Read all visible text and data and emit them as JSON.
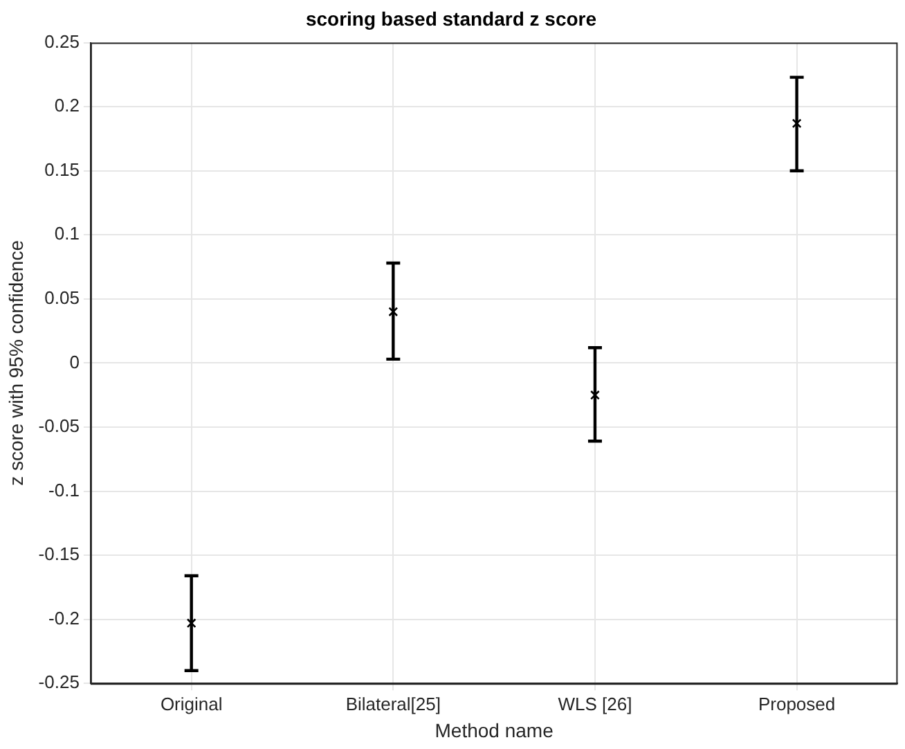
{
  "chart_data": {
    "type": "scatter",
    "title": "scoring based standard z score",
    "xlabel": "Method name",
    "ylabel": "z score with 95% confidence",
    "categories": [
      "Original",
      "Bilateral[25]",
      "WLS [26]",
      "Proposed"
    ],
    "series": [
      {
        "color": "#000000",
        "values": [
          -0.203,
          0.04,
          -0.025,
          0.187
        ],
        "errors": [
          [
            -0.24,
            -0.166
          ],
          [
            0.003,
            0.078
          ],
          [
            -0.061,
            0.012
          ],
          [
            0.15,
            0.223
          ]
        ]
      }
    ],
    "ylim": [
      -0.25,
      0.25
    ],
    "yticks": [
      -0.25,
      -0.2,
      -0.15,
      -0.1,
      -0.05,
      0,
      0.05,
      0.1,
      0.15,
      0.2,
      0.25
    ],
    "grid": true,
    "marker": "cross"
  }
}
